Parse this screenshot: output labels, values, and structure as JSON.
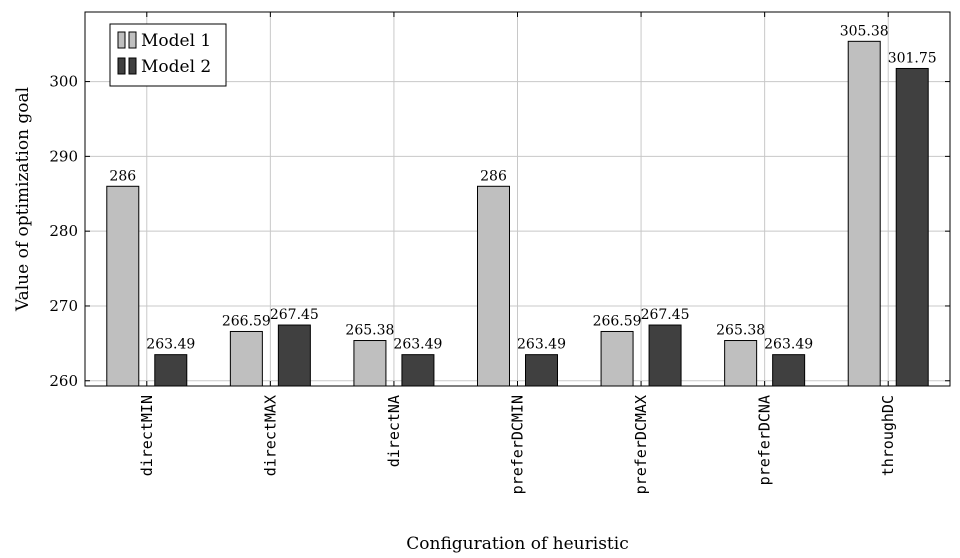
{
  "chart_data": {
    "type": "bar",
    "xlabel": "Configuration of heuristic",
    "ylabel": "Value of optimization goal",
    "categories": [
      "directMIN",
      "directMAX",
      "directNA",
      "preferDCMIN",
      "preferDCMAX",
      "preferDCNA",
      "throughDC"
    ],
    "series": [
      {
        "name": "Model 1",
        "color": "#bfbfbf",
        "values": [
          286,
          266.59,
          265.38,
          286,
          266.59,
          265.38,
          305.38
        ],
        "labels": [
          "286",
          "266.59",
          "265.38",
          "286",
          "266.59",
          "265.38",
          "305.38"
        ]
      },
      {
        "name": "Model 2",
        "color": "#404040",
        "values": [
          263.49,
          267.45,
          263.49,
          263.49,
          267.45,
          263.49,
          301.75
        ],
        "labels": [
          "263.49",
          "267.45",
          "263.49",
          "263.49",
          "267.45",
          "263.49",
          "301.75"
        ]
      }
    ],
    "ylim": [
      259.3,
      309.3
    ],
    "yticks": [
      260,
      270,
      280,
      290,
      300
    ],
    "grid": true,
    "legend_position": "top-left"
  }
}
